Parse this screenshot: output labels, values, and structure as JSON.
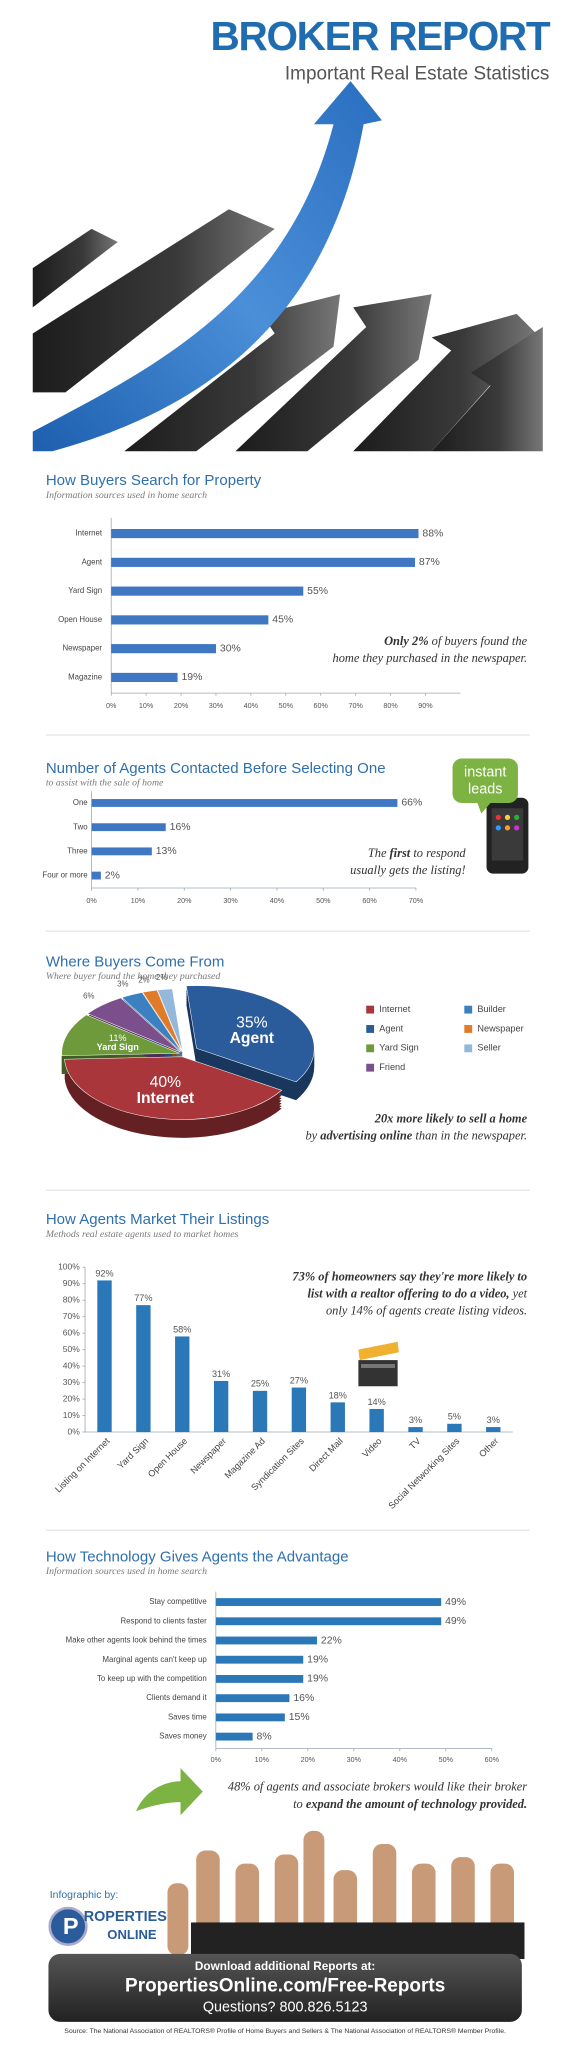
{
  "header": {
    "title": "BROKER REPORT",
    "subtitle": "Important Real Estate Statistics"
  },
  "chart_data": [
    {
      "type": "bar",
      "horizontal": true,
      "title": "How Buyers Search for Property",
      "subtitle": "Information sources used in home search",
      "categories": [
        "Internet",
        "Agent",
        "Yard Sign",
        "Open House",
        "Newspaper",
        "Magazine"
      ],
      "values": [
        88,
        87,
        55,
        45,
        30,
        19
      ],
      "value_labels": [
        "88%",
        "87%",
        "55%",
        "45%",
        "30%",
        "19%"
      ],
      "color": "#3f77c2",
      "xlim": [
        0,
        100
      ],
      "xticks": [
        {
          "value": 0,
          "label": "0%"
        },
        {
          "value": 10,
          "label": "10%"
        },
        {
          "value": 20,
          "label": "20%"
        },
        {
          "value": 30,
          "label": "30%"
        },
        {
          "value": 40,
          "label": "40%"
        },
        {
          "value": 50,
          "label": "50%"
        },
        {
          "value": 60,
          "label": "60%"
        },
        {
          "value": 70,
          "label": "70%"
        },
        {
          "value": 80,
          "label": "80%"
        },
        {
          "value": 90,
          "label": "90%"
        }
      ],
      "annotation": [
        [
          "Only 2%",
          " of buyers found the"
        ],
        [
          "home they purchased in the newspaper."
        ]
      ]
    },
    {
      "type": "bar",
      "horizontal": true,
      "title": "Number of Agents Contacted Before Selecting One",
      "subtitle": "to assist with the sale of home",
      "categories": [
        "One",
        "Two",
        "Three",
        "Four or more"
      ],
      "values": [
        66,
        16,
        13,
        2
      ],
      "value_labels": [
        "66%",
        "16%",
        "13%",
        "2%"
      ],
      "color": "#3f77c2",
      "xlim": [
        0,
        70
      ],
      "xticks": [
        {
          "value": 0,
          "label": "0%"
        },
        {
          "value": 10,
          "label": "10%"
        },
        {
          "value": 20,
          "label": "20%"
        },
        {
          "value": 30,
          "label": "30%"
        },
        {
          "value": 40,
          "label": "40%"
        },
        {
          "value": 50,
          "label": "50%"
        },
        {
          "value": 60,
          "label": "60%"
        },
        {
          "value": 70,
          "label": "70%"
        }
      ],
      "annotation": [
        [
          "The ",
          "first",
          " to respond"
        ],
        [
          "usually gets the listing!"
        ]
      ],
      "badge": [
        "instant",
        "leads"
      ]
    },
    {
      "type": "pie",
      "title": "Where Buyers Come From",
      "subtitle": "Where buyer found the home they purchased",
      "categories": [
        "Internet",
        "Builder",
        "Agent",
        "Newspaper",
        "Yard Sign",
        "Seller",
        "Friend"
      ],
      "values": [
        40,
        3,
        35,
        2,
        11,
        2,
        6
      ],
      "value_labels": [
        "40%",
        "3%",
        "35%",
        "2%",
        "11%",
        "2%",
        "6%"
      ],
      "colors": [
        "#a8363a",
        "#3b80c1",
        "#2a5b9b",
        "#e07b2a",
        "#6e9a3c",
        "#93b8dc",
        "#7a4f8c"
      ],
      "annotation": [
        [
          "20x more likely to sell a home"
        ],
        [
          "by ",
          "advertising online",
          " than in the newspaper."
        ]
      ]
    },
    {
      "type": "bar",
      "horizontal": false,
      "title": "How Agents Market Their Listings",
      "subtitle": "Methods real estate agents used to market homes",
      "categories": [
        "Listing on Internet",
        "Yard Sign",
        "Open House",
        "Newspaper",
        "Magazine Ad",
        "Syndication Sites",
        "Direct Mail",
        "Video",
        "TV",
        "Social Networking Sites",
        "Other"
      ],
      "values": [
        92,
        77,
        58,
        31,
        25,
        27,
        18,
        14,
        3,
        5,
        3
      ],
      "value_labels": [
        "92%",
        "77%",
        "58%",
        "31%",
        "25%",
        "27%",
        "18%",
        "14%",
        "3%",
        "5%",
        "3%"
      ],
      "color": "#2b78b8",
      "ylim": [
        0,
        100
      ],
      "yticks": [
        {
          "value": 0,
          "label": "0%"
        },
        {
          "value": 10,
          "label": "10%"
        },
        {
          "value": 20,
          "label": "20%"
        },
        {
          "value": 30,
          "label": "30%"
        },
        {
          "value": 40,
          "label": "40%"
        },
        {
          "value": 50,
          "label": "50%"
        },
        {
          "value": 60,
          "label": "60%"
        },
        {
          "value": 70,
          "label": "70%"
        },
        {
          "value": 80,
          "label": "80%"
        },
        {
          "value": 90,
          "label": "90%"
        },
        {
          "value": 100,
          "label": "100%"
        }
      ],
      "annotation": [
        [
          "73% of homeowners say they're more likely to"
        ],
        [
          "list with a realtor offering to do a video,",
          " yet"
        ],
        [
          "only 14% of agents create listing videos."
        ]
      ]
    },
    {
      "type": "bar",
      "horizontal": true,
      "title": "How Technology Gives Agents the Advantage",
      "subtitle": "Information sources used in home search",
      "categories": [
        "Stay competitive",
        "Respond to clients faster",
        "Make other agents look behind the times",
        "Marginal agents can't keep up",
        "To keep up with the competition",
        "Clients demand it",
        "Saves time",
        "Saves money"
      ],
      "values": [
        49,
        49,
        22,
        19,
        19,
        16,
        15,
        8
      ],
      "value_labels": [
        "49%",
        "49%",
        "22%",
        "19%",
        "19%",
        "16%",
        "15%",
        "8%"
      ],
      "color": "#2b78b8",
      "xlim": [
        0,
        60
      ],
      "xticks": [
        {
          "value": 0,
          "label": "0%"
        },
        {
          "value": 10,
          "label": "10%"
        },
        {
          "value": 20,
          "label": "20%"
        },
        {
          "value": 30,
          "label": "30%"
        },
        {
          "value": 40,
          "label": "40%"
        },
        {
          "value": 50,
          "label": "50%"
        },
        {
          "value": 60,
          "label": "60%"
        }
      ],
      "annotation": [
        [
          "48% of agents and associate brokers would like their broker"
        ],
        [
          "to ",
          "expand the amount of technology provided."
        ]
      ]
    }
  ],
  "footer": {
    "credit": "Infographic by:",
    "logo": [
      "ROPERTIES",
      "ONLINE"
    ],
    "download": "Download additional Reports at:",
    "url": "PropertiesOnline.com/Free-Reports",
    "questions": "Questions? 800.826.5123",
    "source": "Source: The National Association of REALTORS® Profile of Home Buyers and Sellers & The National Association of REALTORS® Member Profile."
  }
}
